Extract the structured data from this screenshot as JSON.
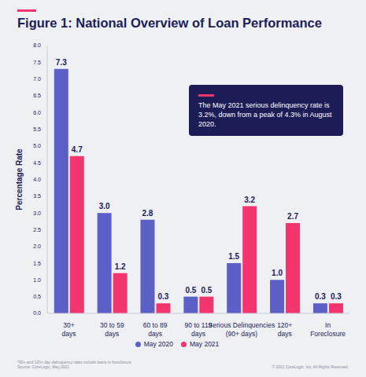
{
  "chart_data": {
    "type": "bar",
    "title": "Figure 1: National Overview of Loan Performance",
    "y_label": "Percentage Rate",
    "annotation": "The May 2021 serious delinquency rate is 3.2%, down from a peak of 4.3% in August 2020.",
    "footnote": "*90+ and 120+ day delinquency rates include loans in foreclosure",
    "source": "Source: CoreLogic, May 2021",
    "copyright": "© 2021 CoreLogic, Inc. All Rights Reserved.",
    "categories": [
      "30+ days",
      "30 to 59 days",
      "60 to 89 days",
      "90 to 119 days",
      "Serious Delinquencies (90+ days)",
      "120+ days",
      "In Foreclosure"
    ],
    "series": [
      {
        "name": "May 2020",
        "color": "#5b5fc6",
        "values": [
          7.3,
          3.0,
          2.8,
          0.5,
          1.5,
          1.0,
          0.3
        ],
        "value_labels": [
          "7.3",
          "3.0",
          "2.8",
          "0.5",
          "1.5",
          "1.0",
          "0.3"
        ]
      },
      {
        "name": "May 2021",
        "color": "#f2346f",
        "values": [
          4.7,
          1.2,
          0.3,
          0.5,
          3.2,
          2.7,
          0.3
        ],
        "value_labels": [
          "4.7",
          "1.2",
          "0.3",
          "0.5",
          "3.2",
          "2.7",
          "0.3"
        ]
      }
    ],
    "ylim": [
      0,
      8
    ],
    "yticks": [
      {
        "value": 0,
        "label": "0.0"
      },
      {
        "value": 0.5,
        "label": "0.5"
      },
      {
        "value": 1,
        "label": "1.0"
      },
      {
        "value": 1.5,
        "label": "1.5"
      },
      {
        "value": 2,
        "label": "2.0"
      },
      {
        "value": 2.5,
        "label": "2.5"
      },
      {
        "value": 3,
        "label": "3.0"
      },
      {
        "value": 3.5,
        "label": "3.5"
      },
      {
        "value": 4,
        "label": "4.0"
      },
      {
        "value": 4.5,
        "label": "4.5"
      },
      {
        "value": 5,
        "label": "5.0"
      },
      {
        "value": 5.5,
        "label": "5.5"
      },
      {
        "value": 6,
        "label": "6.0"
      },
      {
        "value": 6.5,
        "label": "6.5"
      },
      {
        "value": 7,
        "label": "7.0"
      },
      {
        "value": 7.5,
        "label": "7.5"
      },
      {
        "value": 8,
        "label": "8.0"
      }
    ],
    "grid": false,
    "legend": "bottom",
    "data_labels": true
  }
}
